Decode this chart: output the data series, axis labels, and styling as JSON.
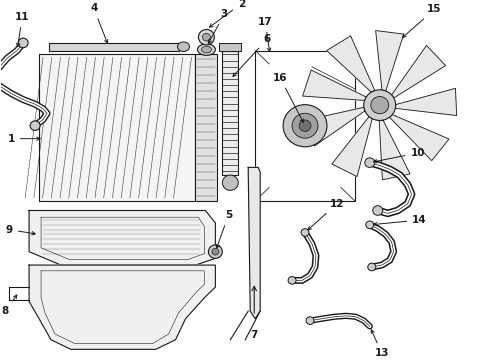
{
  "bg_color": "#ffffff",
  "lc": "#1a1a1a",
  "lw": 0.8,
  "label_fs": 7.5,
  "fig_w": 4.9,
  "fig_h": 3.6,
  "dpi": 100
}
